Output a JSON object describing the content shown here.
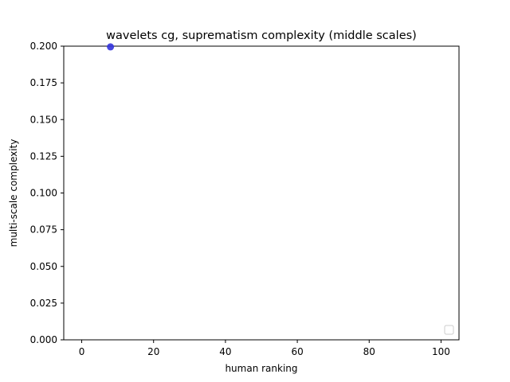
{
  "chart_data": {
    "type": "scatter",
    "title": "wavelets cg, suprematism complexity (middle scales)",
    "xlabel": "human ranking",
    "ylabel": "multi-scale complexity",
    "xlim": [
      -5,
      105
    ],
    "ylim": [
      0.0,
      0.2
    ],
    "x_ticks": [
      0,
      20,
      40,
      60,
      80,
      100
    ],
    "x_tick_labels": [
      "0",
      "20",
      "40",
      "60",
      "80",
      "100"
    ],
    "y_ticks": [
      0.0,
      0.025,
      0.05,
      0.075,
      0.1,
      0.125,
      0.15,
      0.175,
      0.2
    ],
    "y_tick_labels": [
      "0.000",
      "0.025",
      "0.050",
      "0.075",
      "0.100",
      "0.125",
      "0.150",
      "0.175",
      "0.200"
    ],
    "grid": false,
    "legend_position": "lower-right",
    "legend_entries": [],
    "series": [
      {
        "color": "#3333dd",
        "points": [
          {
            "x": 8,
            "y": 0.1995
          }
        ]
      }
    ]
  }
}
